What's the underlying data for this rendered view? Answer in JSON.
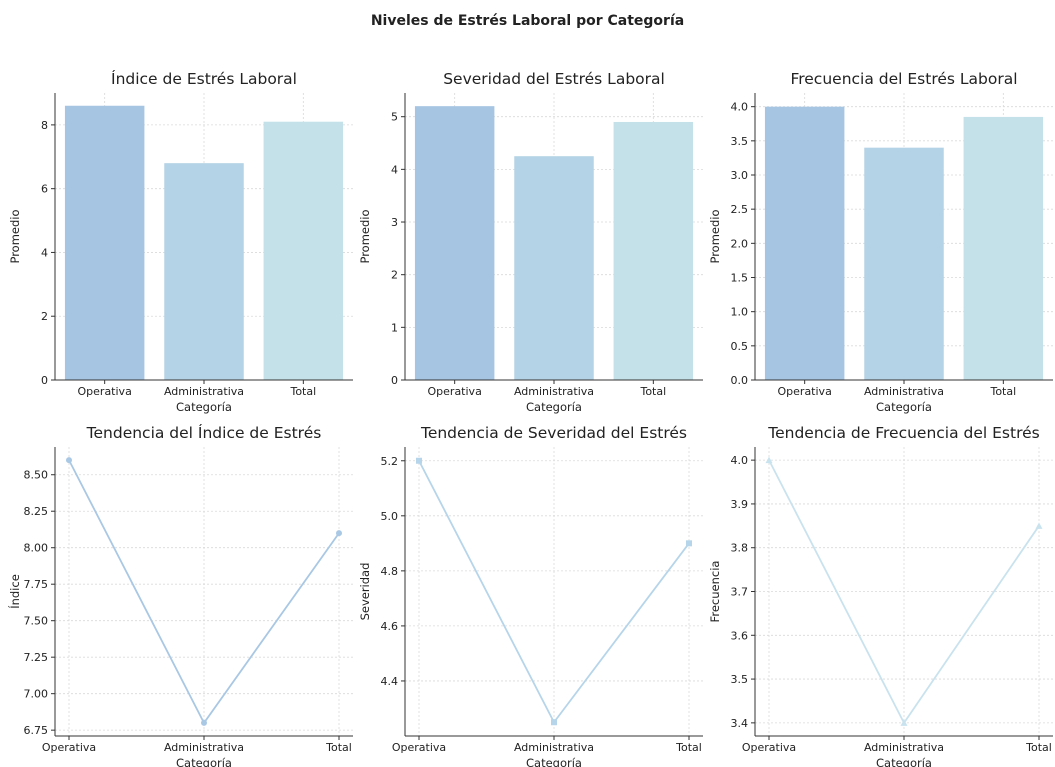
{
  "figure": {
    "title": "Niveles de Estrés Laboral por Categoría"
  },
  "colors": {
    "operativa": "#a6c5e3",
    "administrativa": "#b5d3e6",
    "total": "#c4e0e8",
    "line1": "#a9c8e4",
    "line2": "#b6d5ea",
    "line3": "#c9e3ee",
    "grid": "#d9d9d9",
    "axis": "#333333"
  },
  "chart_data": [
    {
      "type": "bar",
      "title": "Índice de Estrés Laboral",
      "xlabel": "Categoría",
      "ylabel": "Promedio",
      "categories": [
        "Operativa",
        "Administrativa",
        "Total"
      ],
      "values": [
        8.6,
        6.8,
        8.1
      ],
      "ylim": [
        0,
        9
      ],
      "yticks": [
        0,
        2,
        4,
        6,
        8
      ],
      "yticklabels": [
        "0",
        "2",
        "4",
        "6",
        "8"
      ],
      "grid": true
    },
    {
      "type": "bar",
      "title": "Severidad del Estrés Laboral",
      "xlabel": "Categoría",
      "ylabel": "Promedio",
      "categories": [
        "Operativa",
        "Administrativa",
        "Total"
      ],
      "values": [
        5.2,
        4.25,
        4.9
      ],
      "ylim": [
        0,
        5.45
      ],
      "yticks": [
        0,
        1,
        2,
        3,
        4,
        5
      ],
      "yticklabels": [
        "0",
        "1",
        "2",
        "3",
        "4",
        "5"
      ],
      "grid": true
    },
    {
      "type": "bar",
      "title": "Frecuencia del Estrés Laboral",
      "xlabel": "Categoría",
      "ylabel": "Promedio",
      "categories": [
        "Operativa",
        "Administrativa",
        "Total"
      ],
      "values": [
        4.0,
        3.4,
        3.85
      ],
      "ylim": [
        0,
        4.2
      ],
      "yticks": [
        0,
        0.5,
        1,
        1.5,
        2,
        2.5,
        3,
        3.5,
        4
      ],
      "yticklabels": [
        "0.0",
        "0.5",
        "1.0",
        "1.5",
        "2.0",
        "2.5",
        "3.0",
        "3.5",
        "4.0"
      ],
      "grid": true
    },
    {
      "type": "line",
      "title": "Tendencia del Índice de Estrés",
      "xlabel": "Categoría",
      "ylabel": "Índice",
      "categories": [
        "Operativa",
        "Administrativa",
        "Total"
      ],
      "values": [
        8.6,
        6.8,
        8.1
      ],
      "marker": "circle",
      "ylim": [
        6.71,
        8.69
      ],
      "yticks": [
        6.75,
        7.0,
        7.25,
        7.5,
        7.75,
        8.0,
        8.25,
        8.5
      ],
      "yticklabels": [
        "6.75",
        "7.00",
        "7.25",
        "7.50",
        "7.75",
        "8.00",
        "8.25",
        "8.50"
      ],
      "grid": true
    },
    {
      "type": "line",
      "title": "Tendencia de Severidad del Estrés",
      "xlabel": "Categoría",
      "ylabel": "Severidad",
      "categories": [
        "Operativa",
        "Administrativa",
        "Total"
      ],
      "values": [
        5.2,
        4.25,
        4.9
      ],
      "marker": "square",
      "ylim": [
        4.2,
        5.25
      ],
      "yticks": [
        4.4,
        4.6,
        4.8,
        5.0,
        5.2
      ],
      "yticklabels": [
        "4.4",
        "4.6",
        "4.8",
        "5.0",
        "5.2"
      ],
      "grid": true
    },
    {
      "type": "line",
      "title": "Tendencia de Frecuencia del Estrés",
      "xlabel": "Categoría",
      "ylabel": "Frecuencia",
      "categories": [
        "Operativa",
        "Administrativa",
        "Total"
      ],
      "values": [
        4.0,
        3.4,
        3.85
      ],
      "marker": "triangle",
      "ylim": [
        3.37,
        4.03
      ],
      "yticks": [
        3.4,
        3.5,
        3.6,
        3.7,
        3.8,
        3.9,
        4.0
      ],
      "yticklabels": [
        "3.4",
        "3.5",
        "3.6",
        "3.7",
        "3.8",
        "3.9",
        "4.0"
      ],
      "grid": true
    }
  ]
}
